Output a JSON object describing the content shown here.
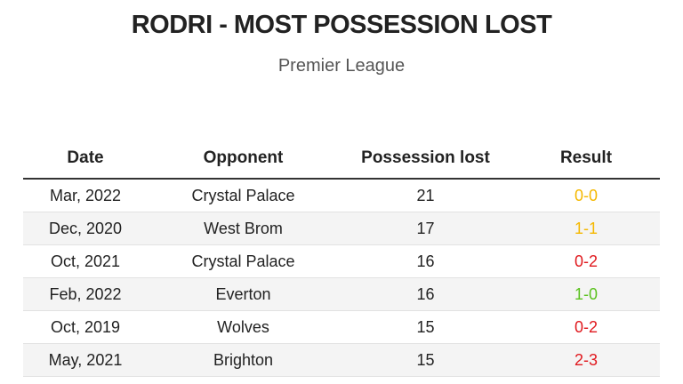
{
  "chart_data": {
    "type": "table",
    "title": "RODRI - MOST POSSESSION LOST",
    "subtitle": "Premier League",
    "columns": [
      "Date",
      "Opponent",
      "Possession lost",
      "Result"
    ],
    "rows": [
      {
        "date": "Mar, 2022",
        "opponent": "Crystal Palace",
        "possession_lost": "21",
        "result": "0-0",
        "result_color": "#f5b800"
      },
      {
        "date": "Dec, 2020",
        "opponent": "West Brom",
        "possession_lost": "17",
        "result": "1-1",
        "result_color": "#f5b800"
      },
      {
        "date": "Oct, 2021",
        "opponent": "Crystal Palace",
        "possession_lost": "16",
        "result": "0-2",
        "result_color": "#e0191e"
      },
      {
        "date": "Feb, 2022",
        "opponent": "Everton",
        "possession_lost": "16",
        "result": "1-0",
        "result_color": "#5bc21f"
      },
      {
        "date": "Oct, 2019",
        "opponent": "Wolves",
        "possession_lost": "15",
        "result": "0-2",
        "result_color": "#e0191e"
      },
      {
        "date": "May, 2021",
        "opponent": "Brighton",
        "possession_lost": "15",
        "result": "2-3",
        "result_color": "#e0191e"
      }
    ]
  }
}
